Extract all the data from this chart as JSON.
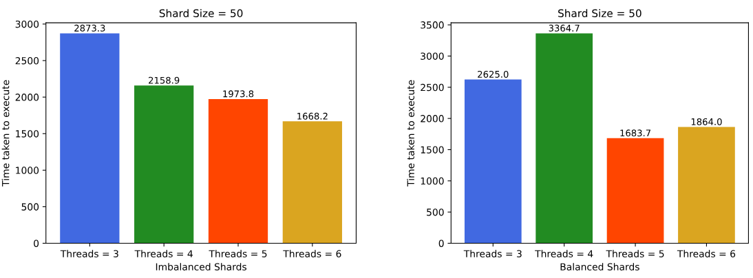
{
  "chart_data": [
    {
      "type": "bar",
      "title": "Shard Size = 50",
      "xlabel": "Imbalanced Shards",
      "ylabel": "Time taken to execute",
      "categories": [
        "Threads = 3",
        "Threads = 4",
        "Threads = 5",
        "Threads = 6"
      ],
      "values": [
        2873.3,
        2158.9,
        1973.8,
        1668.2
      ],
      "value_labels": [
        "2873.3",
        "2158.9",
        "1973.8",
        "1668.2"
      ],
      "colors": [
        "#4169e1",
        "#228b22",
        "#ff4500",
        "#daa520"
      ],
      "ylim": [
        0,
        3017
      ],
      "yticks": [
        0,
        500,
        1000,
        1500,
        2000,
        2500,
        3000
      ]
    },
    {
      "type": "bar",
      "title": "Shard Size = 50",
      "xlabel": "Balanced Shards",
      "ylabel": "Time taken to execute",
      "categories": [
        "Threads = 3",
        "Threads = 4",
        "Threads = 5",
        "Threads = 6"
      ],
      "values": [
        2625.0,
        3364.7,
        1683.7,
        1864.0
      ],
      "value_labels": [
        "2625.0",
        "3364.7",
        "1683.7",
        "1864.0"
      ],
      "colors": [
        "#4169e1",
        "#228b22",
        "#ff4500",
        "#daa520"
      ],
      "ylim": [
        0,
        3533
      ],
      "yticks": [
        0,
        500,
        1000,
        1500,
        2000,
        2500,
        3000,
        3500
      ]
    }
  ]
}
